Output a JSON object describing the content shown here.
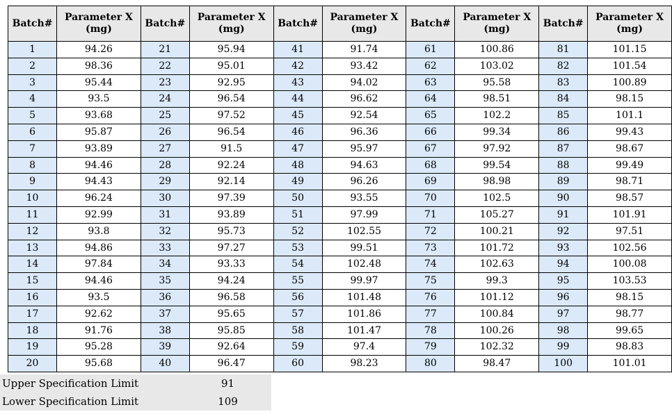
{
  "header": {
    "batch_label": "Batch#",
    "param_label": "Parameter X (mg)"
  },
  "groups": [
    {
      "batches": [
        "1",
        "2",
        "3",
        "4",
        "5",
        "6",
        "7",
        "8",
        "9",
        "10",
        "11",
        "12",
        "13",
        "14",
        "15",
        "16",
        "17",
        "18",
        "19",
        "20"
      ],
      "values": [
        "94.26",
        "98.36",
        "95.44",
        "93.5",
        "93.68",
        "95.87",
        "93.89",
        "94.46",
        "94.43",
        "96.24",
        "92.99",
        "93.8",
        "94.86",
        "97.84",
        "94.46",
        "93.5",
        "92.62",
        "91.76",
        "95.28",
        "95.68"
      ]
    },
    {
      "batches": [
        "21",
        "22",
        "23",
        "24",
        "25",
        "26",
        "27",
        "28",
        "29",
        "30",
        "31",
        "32",
        "33",
        "34",
        "35",
        "36",
        "37",
        "38",
        "39",
        "40"
      ],
      "values": [
        "95.94",
        "95.01",
        "92.95",
        "96.54",
        "97.52",
        "96.54",
        "91.5",
        "92.24",
        "92.14",
        "97.39",
        "93.89",
        "95.73",
        "97.27",
        "93.33",
        "94.24",
        "96.58",
        "95.65",
        "95.85",
        "92.64",
        "96.47"
      ]
    },
    {
      "batches": [
        "41",
        "42",
        "43",
        "44",
        "45",
        "46",
        "47",
        "48",
        "49",
        "50",
        "51",
        "52",
        "53",
        "54",
        "55",
        "56",
        "57",
        "58",
        "59",
        "60"
      ],
      "values": [
        "91.74",
        "93.42",
        "94.02",
        "96.62",
        "92.54",
        "96.36",
        "95.97",
        "94.63",
        "96.26",
        "93.55",
        "97.99",
        "102.55",
        "99.51",
        "102.48",
        "99.97",
        "101.48",
        "101.86",
        "101.47",
        "97.4",
        "98.23"
      ]
    },
    {
      "batches": [
        "61",
        "62",
        "63",
        "64",
        "65",
        "66",
        "67",
        "68",
        "69",
        "70",
        "71",
        "72",
        "73",
        "74",
        "75",
        "76",
        "77",
        "78",
        "79",
        "80"
      ],
      "values": [
        "100.86",
        "103.02",
        "95.58",
        "98.51",
        "102.2",
        "99.34",
        "97.92",
        "99.54",
        "98.98",
        "102.5",
        "105.27",
        "100.21",
        "101.72",
        "102.63",
        "99.3",
        "101.12",
        "100.84",
        "100.26",
        "102.32",
        "98.47"
      ]
    },
    {
      "batches": [
        "81",
        "82",
        "83",
        "84",
        "85",
        "86",
        "87",
        "88",
        "89",
        "90",
        "91",
        "92",
        "93",
        "94",
        "95",
        "96",
        "97",
        "98",
        "99",
        "100"
      ],
      "values": [
        "101.15",
        "101.54",
        "100.89",
        "98.15",
        "101.1",
        "99.43",
        "98.67",
        "99.49",
        "98.71",
        "98.57",
        "101.91",
        "97.51",
        "102.56",
        "100.08",
        "103.53",
        "98.15",
        "98.77",
        "99.65",
        "98.83",
        "101.01"
      ]
    }
  ],
  "spec_limits": {
    "upper_label": "Upper Specification Limit",
    "upper_value": "91",
    "lower_label": "Lower Specification Limit",
    "lower_value": "109"
  },
  "colors": {
    "header_bg": "#e8e8e8",
    "batch_cell_bg": "#dbe9f8",
    "value_cell_bg": "#ffffff",
    "footer_bg": "#e8e8e8",
    "border": "#000000"
  }
}
